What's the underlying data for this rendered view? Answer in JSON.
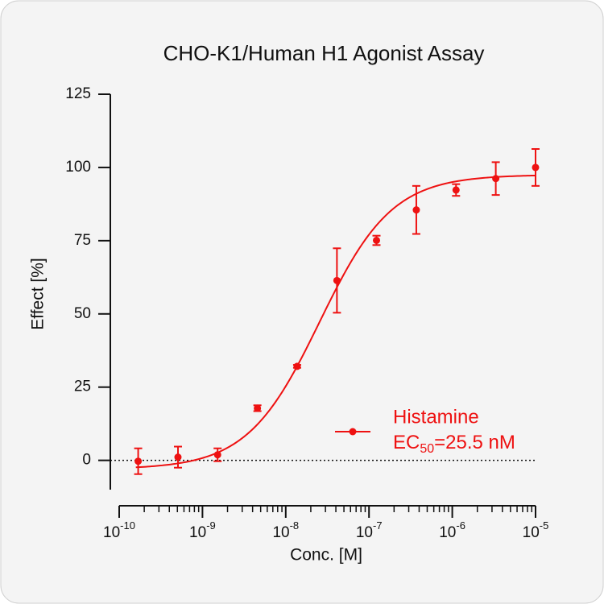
{
  "chart_data": {
    "type": "scatter",
    "title": "CHO-K1/Human H1 Agonist Assay",
    "x_label": "Conc. [M]",
    "y_label": "Effect  [%]",
    "log_x": true,
    "xlim": [
      1e-10,
      1e-05
    ],
    "xticks": [
      {
        "value": 1e-10,
        "label": "10",
        "exponent": "-10"
      },
      {
        "value": 1e-09,
        "label": "10",
        "exponent": "-9"
      },
      {
        "value": 1e-08,
        "label": "10",
        "exponent": "-8"
      },
      {
        "value": 1e-07,
        "label": "10",
        "exponent": "-7"
      },
      {
        "value": 1e-06,
        "label": "10",
        "exponent": "-6"
      },
      {
        "value": 1e-05,
        "label": "10",
        "exponent": "-5"
      }
    ],
    "minor_ticks": true,
    "ylim": [
      -10,
      125
    ],
    "yticks": [
      0,
      25,
      50,
      75,
      100,
      125
    ],
    "hline": 0,
    "series": [
      {
        "name": "Histamine",
        "ec50_label": "EC",
        "ec50_sub": "50",
        "ec50_value": "=25.5 nM",
        "color": "#ee1111",
        "x": [
          1.69e-10,
          5.08e-10,
          1.52e-09,
          4.57e-09,
          1.37e-08,
          4.12e-08,
          1.23e-07,
          3.7e-07,
          1.11e-06,
          3.33e-06,
          1e-05
        ],
        "values": [
          -0.3,
          1.1,
          1.9,
          17.8,
          32.1,
          61.4,
          75.1,
          85.5,
          92.3,
          96.2,
          100
        ],
        "errors": [
          4.4,
          3.6,
          2.2,
          1,
          0.5,
          11,
          1.6,
          8.2,
          2,
          5.6,
          6.3
        ],
        "fit": {
          "bottom": -3,
          "top": 97.5,
          "ec50": 2.55e-08,
          "hill": 1
        }
      }
    ]
  }
}
